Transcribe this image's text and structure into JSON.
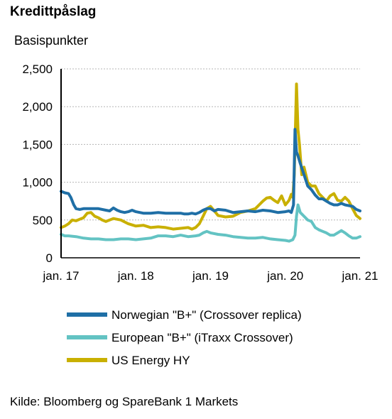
{
  "chart_data": {
    "type": "line",
    "title": "Kredittpåslag",
    "subtitle": "Basispunkter",
    "xlabel": "",
    "ylabel": "",
    "x_tick_labels": [
      "jan. 17",
      "jan. 18",
      "jan. 19",
      "jan. 20",
      "jan. 21"
    ],
    "x_tick_values": [
      2017,
      2018,
      2019,
      2020,
      2021
    ],
    "xlim": [
      2017,
      2021
    ],
    "y_tick_labels": [
      "0",
      "500",
      "1,000",
      "1,500",
      "2,000",
      "2,500"
    ],
    "y_tick_values": [
      0,
      500,
      1000,
      1500,
      2000,
      2500
    ],
    "ylim": [
      0,
      2500
    ],
    "grid": "horizontal dashed",
    "legend_position": "bottom",
    "source": "Kilde: Bloomberg og SpareBank 1 Markets",
    "series": [
      {
        "name": "Norwegian \"B+\" (Crossover replica)",
        "color": "#1f6fa6",
        "x": [
          2017.0,
          2017.05,
          2017.1,
          2017.13,
          2017.17,
          2017.2,
          2017.25,
          2017.3,
          2017.4,
          2017.5,
          2017.6,
          2017.65,
          2017.7,
          2017.75,
          2017.8,
          2017.85,
          2017.9,
          2017.95,
          2018.0,
          2018.1,
          2018.2,
          2018.3,
          2018.4,
          2018.5,
          2018.6,
          2018.65,
          2018.7,
          2018.75,
          2018.8,
          2018.85,
          2018.9,
          2018.95,
          2019.0,
          2019.05,
          2019.1,
          2019.2,
          2019.3,
          2019.4,
          2019.5,
          2019.6,
          2019.7,
          2019.8,
          2019.9,
          2020.0,
          2020.05,
          2020.08,
          2020.11,
          2020.13,
          2020.15,
          2020.17,
          2020.2,
          2020.25,
          2020.3,
          2020.35,
          2020.4,
          2020.45,
          2020.5,
          2020.55,
          2020.6,
          2020.65,
          2020.7,
          2020.75,
          2020.8,
          2020.85,
          2020.9,
          2020.95,
          2021.0
        ],
        "values": [
          880,
          860,
          850,
          800,
          700,
          650,
          640,
          650,
          650,
          650,
          630,
          620,
          660,
          630,
          610,
          600,
          610,
          630,
          610,
          590,
          590,
          600,
          590,
          590,
          590,
          580,
          580,
          590,
          580,
          600,
          630,
          650,
          650,
          620,
          640,
          630,
          600,
          610,
          620,
          610,
          630,
          620,
          600,
          610,
          620,
          600,
          700,
          1700,
          1400,
          1350,
          1250,
          1100,
          950,
          900,
          830,
          780,
          780,
          750,
          720,
          700,
          700,
          720,
          700,
          690,
          680,
          640,
          620
        ]
      },
      {
        "name": "European \"B+\" (iTraxx Crossover)",
        "color": "#63c3c3",
        "x": [
          2017.0,
          2017.05,
          2017.1,
          2017.2,
          2017.3,
          2017.4,
          2017.5,
          2017.6,
          2017.7,
          2017.8,
          2017.9,
          2018.0,
          2018.1,
          2018.2,
          2018.3,
          2018.4,
          2018.5,
          2018.6,
          2018.7,
          2018.8,
          2018.85,
          2018.9,
          2018.95,
          2019.0,
          2019.1,
          2019.2,
          2019.3,
          2019.4,
          2019.5,
          2019.6,
          2019.7,
          2019.8,
          2019.9,
          2020.0,
          2020.05,
          2020.1,
          2020.13,
          2020.15,
          2020.17,
          2020.2,
          2020.25,
          2020.3,
          2020.35,
          2020.4,
          2020.45,
          2020.5,
          2020.55,
          2020.6,
          2020.65,
          2020.7,
          2020.75,
          2020.8,
          2020.85,
          2020.9,
          2020.95,
          2021.0
        ],
        "values": [
          310,
          290,
          290,
          280,
          260,
          250,
          250,
          240,
          240,
          250,
          250,
          240,
          250,
          260,
          290,
          290,
          280,
          300,
          280,
          290,
          300,
          330,
          350,
          330,
          310,
          300,
          280,
          270,
          260,
          260,
          270,
          250,
          240,
          230,
          220,
          240,
          300,
          550,
          700,
          600,
          550,
          500,
          480,
          400,
          370,
          350,
          330,
          300,
          300,
          330,
          360,
          330,
          290,
          260,
          260,
          280
        ]
      },
      {
        "name": "US Energy HY",
        "color": "#c9b000",
        "x": [
          2017.0,
          2017.05,
          2017.1,
          2017.15,
          2017.2,
          2017.25,
          2017.3,
          2017.35,
          2017.4,
          2017.45,
          2017.5,
          2017.55,
          2017.6,
          2017.7,
          2017.8,
          2017.9,
          2018.0,
          2018.1,
          2018.2,
          2018.3,
          2018.4,
          2018.5,
          2018.6,
          2018.7,
          2018.75,
          2018.8,
          2018.85,
          2018.9,
          2018.95,
          2019.0,
          2019.05,
          2019.1,
          2019.2,
          2019.3,
          2019.4,
          2019.5,
          2019.6,
          2019.65,
          2019.7,
          2019.75,
          2019.8,
          2019.85,
          2019.9,
          2019.95,
          2020.0,
          2020.05,
          2020.08,
          2020.1,
          2020.12,
          2020.15,
          2020.17,
          2020.19,
          2020.22,
          2020.25,
          2020.3,
          2020.35,
          2020.4,
          2020.45,
          2020.5,
          2020.55,
          2020.6,
          2020.65,
          2020.7,
          2020.75,
          2020.8,
          2020.85,
          2020.9,
          2020.95,
          2021.0
        ],
        "values": [
          400,
          420,
          450,
          500,
          490,
          510,
          530,
          590,
          600,
          550,
          530,
          500,
          480,
          520,
          500,
          450,
          420,
          430,
          400,
          410,
          400,
          380,
          390,
          400,
          380,
          400,
          450,
          550,
          650,
          680,
          620,
          560,
          540,
          550,
          600,
          620,
          650,
          700,
          750,
          790,
          800,
          760,
          730,
          820,
          700,
          760,
          840,
          800,
          1100,
          2300,
          1700,
          1500,
          1100,
          1200,
          1000,
          950,
          950,
          850,
          800,
          750,
          820,
          850,
          760,
          750,
          800,
          750,
          650,
          560,
          520
        ]
      }
    ]
  }
}
